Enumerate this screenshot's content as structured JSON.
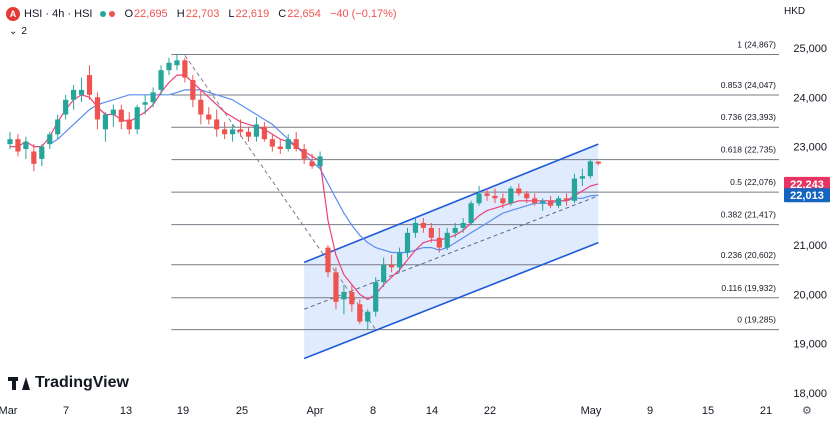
{
  "header": {
    "symbol": "HSI · 4h · HSI",
    "open_label": "O",
    "open": "22,695",
    "high_label": "H",
    "high": "22,703",
    "low_label": "L",
    "low": "22,619",
    "close_label": "C",
    "close": "22,654",
    "change": "−40 (−0.17%)",
    "collapse_label": "2",
    "currency": "HKD"
  },
  "brand": {
    "name": "TradingView"
  },
  "colors": {
    "up": "#26a69a",
    "down": "#ef5350",
    "ema_fast": "#ec407a",
    "ma_slow": "#5b8def",
    "channel_line": "#1e5bd8",
    "channel_fill": "#dbe7fd",
    "fib_line": "#787b86",
    "price_badge_red": "#e63563",
    "price_badge_blue": "#1565c0"
  },
  "chart_data": {
    "type": "candlestick",
    "timeframe": "4h",
    "ylim": [
      18000,
      25400
    ],
    "y_ticks": [
      "18,000",
      "19,000",
      "20,000",
      "21,000",
      "22,000",
      "23,000",
      "24,000",
      "25,000"
    ],
    "y_tick_values": [
      18000,
      19000,
      20000,
      21000,
      22000,
      23000,
      24000,
      25000
    ],
    "x_ticks": [
      "Mar",
      "7",
      "13",
      "19",
      "25",
      "Apr",
      "8",
      "14",
      "22",
      "May",
      "9",
      "15",
      "21"
    ],
    "fib_levels": [
      {
        "ratio": "1",
        "value": 24867,
        "label": "1 (24,867)"
      },
      {
        "ratio": "0.853",
        "value": 24047,
        "label": "0.853 (24,047)"
      },
      {
        "ratio": "0.736",
        "value": 23393,
        "label": "0.736 (23,393)"
      },
      {
        "ratio": "0.618",
        "value": 22735,
        "label": "0.618 (22,735)"
      },
      {
        "ratio": "0.5",
        "value": 22076,
        "label": "0.5 (22,076)"
      },
      {
        "ratio": "0.382",
        "value": 21417,
        "label": "0.382 (21,417)"
      },
      {
        "ratio": "0.236",
        "value": 20602,
        "label": "0.236 (20,602)"
      },
      {
        "ratio": "0.116",
        "value": 19932,
        "label": "0.116 (19,932)"
      },
      {
        "ratio": "0",
        "value": 19285,
        "label": "0 (19,285)"
      }
    ],
    "price_badges": [
      {
        "value": 22243,
        "label": "22,243",
        "color": "red"
      },
      {
        "value": 22013,
        "label": "22,013",
        "color": "blue"
      }
    ],
    "candles": [
      {
        "o": 23050,
        "h": 23300,
        "l": 22950,
        "c": 23150
      },
      {
        "o": 23150,
        "h": 23250,
        "l": 22800,
        "c": 22900
      },
      {
        "o": 22950,
        "h": 23200,
        "l": 22750,
        "c": 23100
      },
      {
        "o": 22900,
        "h": 23050,
        "l": 22500,
        "c": 22650
      },
      {
        "o": 22750,
        "h": 23050,
        "l": 22600,
        "c": 23000
      },
      {
        "o": 23050,
        "h": 23300,
        "l": 22950,
        "c": 23250
      },
      {
        "o": 23250,
        "h": 23650,
        "l": 23150,
        "c": 23550
      },
      {
        "o": 23650,
        "h": 24050,
        "l": 23550,
        "c": 23950
      },
      {
        "o": 23950,
        "h": 24250,
        "l": 23750,
        "c": 24150
      },
      {
        "o": 24050,
        "h": 24400,
        "l": 23900,
        "c": 24150
      },
      {
        "o": 24450,
        "h": 24650,
        "l": 23950,
        "c": 24050
      },
      {
        "o": 24000,
        "h": 24100,
        "l": 23350,
        "c": 23550
      },
      {
        "o": 23350,
        "h": 23700,
        "l": 23100,
        "c": 23650
      },
      {
        "o": 23650,
        "h": 23850,
        "l": 23400,
        "c": 23750
      },
      {
        "o": 23750,
        "h": 23850,
        "l": 23350,
        "c": 23500
      },
      {
        "o": 23550,
        "h": 23700,
        "l": 23250,
        "c": 23350
      },
      {
        "o": 23350,
        "h": 23850,
        "l": 23250,
        "c": 23800
      },
      {
        "o": 23850,
        "h": 24050,
        "l": 23650,
        "c": 23900
      },
      {
        "o": 23900,
        "h": 24200,
        "l": 23800,
        "c": 24100
      },
      {
        "o": 24150,
        "h": 24650,
        "l": 24050,
        "c": 24550
      },
      {
        "o": 24550,
        "h": 24800,
        "l": 24450,
        "c": 24700
      },
      {
        "o": 24650,
        "h": 24867,
        "l": 24550,
        "c": 24750
      },
      {
        "o": 24750,
        "h": 24800,
        "l": 24300,
        "c": 24400
      },
      {
        "o": 24350,
        "h": 24450,
        "l": 23800,
        "c": 23950
      },
      {
        "o": 23950,
        "h": 24150,
        "l": 23450,
        "c": 23650
      },
      {
        "o": 23650,
        "h": 23800,
        "l": 23450,
        "c": 23550
      },
      {
        "o": 23550,
        "h": 23750,
        "l": 23200,
        "c": 23350
      },
      {
        "o": 23350,
        "h": 23500,
        "l": 23150,
        "c": 23250
      },
      {
        "o": 23250,
        "h": 23450,
        "l": 23100,
        "c": 23350
      },
      {
        "o": 23350,
        "h": 23550,
        "l": 23200,
        "c": 23300
      },
      {
        "o": 23300,
        "h": 23400,
        "l": 23100,
        "c": 23200
      },
      {
        "o": 23200,
        "h": 23600,
        "l": 23100,
        "c": 23450
      },
      {
        "o": 23400,
        "h": 23500,
        "l": 23100,
        "c": 23150
      },
      {
        "o": 23150,
        "h": 23250,
        "l": 22900,
        "c": 23000
      },
      {
        "o": 23000,
        "h": 23150,
        "l": 22850,
        "c": 22950
      },
      {
        "o": 22950,
        "h": 23250,
        "l": 22900,
        "c": 23150
      },
      {
        "o": 23150,
        "h": 23300,
        "l": 22900,
        "c": 22950
      },
      {
        "o": 22950,
        "h": 23050,
        "l": 22650,
        "c": 22750
      },
      {
        "o": 22700,
        "h": 22850,
        "l": 22550,
        "c": 22600
      },
      {
        "o": 22600,
        "h": 22900,
        "l": 22550,
        "c": 22800
      },
      {
        "o": 20950,
        "h": 21000,
        "l": 20350,
        "c": 20450
      },
      {
        "o": 20450,
        "h": 20550,
        "l": 19700,
        "c": 19850
      },
      {
        "o": 19900,
        "h": 20200,
        "l": 19600,
        "c": 20050
      },
      {
        "o": 20050,
        "h": 20200,
        "l": 19650,
        "c": 19800
      },
      {
        "o": 19800,
        "h": 19900,
        "l": 19400,
        "c": 19450
      },
      {
        "o": 19450,
        "h": 19700,
        "l": 19285,
        "c": 19650
      },
      {
        "o": 19650,
        "h": 20350,
        "l": 19550,
        "c": 20250
      },
      {
        "o": 20250,
        "h": 20750,
        "l": 20150,
        "c": 20600
      },
      {
        "o": 20600,
        "h": 20800,
        "l": 20450,
        "c": 20550
      },
      {
        "o": 20550,
        "h": 20950,
        "l": 20450,
        "c": 20850
      },
      {
        "o": 20850,
        "h": 21350,
        "l": 20750,
        "c": 21250
      },
      {
        "o": 21250,
        "h": 21550,
        "l": 21150,
        "c": 21450
      },
      {
        "o": 21450,
        "h": 21550,
        "l": 21250,
        "c": 21350
      },
      {
        "o": 21350,
        "h": 21450,
        "l": 21050,
        "c": 21150
      },
      {
        "o": 21150,
        "h": 21350,
        "l": 20850,
        "c": 20950
      },
      {
        "o": 20950,
        "h": 21350,
        "l": 20900,
        "c": 21250
      },
      {
        "o": 21250,
        "h": 21450,
        "l": 21150,
        "c": 21350
      },
      {
        "o": 21350,
        "h": 21550,
        "l": 21250,
        "c": 21450
      },
      {
        "o": 21450,
        "h": 21900,
        "l": 21400,
        "c": 21850
      },
      {
        "o": 21850,
        "h": 22200,
        "l": 21800,
        "c": 22050
      },
      {
        "o": 22050,
        "h": 22150,
        "l": 21900,
        "c": 22000
      },
      {
        "o": 22000,
        "h": 22150,
        "l": 21850,
        "c": 21950
      },
      {
        "o": 21950,
        "h": 22050,
        "l": 21750,
        "c": 21850
      },
      {
        "o": 21850,
        "h": 22200,
        "l": 21800,
        "c": 22150
      },
      {
        "o": 22150,
        "h": 22250,
        "l": 22000,
        "c": 22050
      },
      {
        "o": 22050,
        "h": 22100,
        "l": 21850,
        "c": 21950
      },
      {
        "o": 21950,
        "h": 22050,
        "l": 21800,
        "c": 21850
      },
      {
        "o": 21850,
        "h": 21950,
        "l": 21700,
        "c": 21900
      },
      {
        "o": 21900,
        "h": 22000,
        "l": 21750,
        "c": 21800
      },
      {
        "o": 21800,
        "h": 22000,
        "l": 21750,
        "c": 21950
      },
      {
        "o": 21950,
        "h": 22050,
        "l": 21800,
        "c": 21900
      },
      {
        "o": 21900,
        "h": 22450,
        "l": 21850,
        "c": 22350
      },
      {
        "o": 22350,
        "h": 22550,
        "l": 22200,
        "c": 22400
      },
      {
        "o": 22400,
        "h": 22750,
        "l": 22350,
        "c": 22700
      },
      {
        "o": 22695,
        "h": 22703,
        "l": 22619,
        "c": 22654
      }
    ],
    "ema_fast": [
      23000,
      23000,
      23100,
      23000,
      23000,
      23200,
      23500,
      23750,
      23950,
      24050,
      24000,
      23800,
      23650,
      23650,
      23550,
      23500,
      23600,
      23700,
      23850,
      24100,
      24300,
      24450,
      24450,
      24300,
      24150,
      24000,
      23850,
      23700,
      23600,
      23500,
      23450,
      23400,
      23350,
      23250,
      23150,
      23100,
      23000,
      22900,
      22800,
      22700,
      21500,
      20800,
      20400,
      20200,
      20000,
      19900,
      20000,
      20200,
      20350,
      20500,
      20700,
      20900,
      21050,
      21100,
      21100,
      21150,
      21200,
      21300,
      21450,
      21600,
      21700,
      21750,
      21800,
      21850,
      21900,
      21900,
      21900,
      21900,
      21900,
      21900,
      21900,
      22000,
      22100,
      22200,
      22243
    ],
    "ma_slow": [
      null,
      null,
      null,
      null,
      null,
      23050,
      23150,
      23300,
      23450,
      23600,
      23750,
      23850,
      23900,
      23950,
      24000,
      24050,
      24050,
      24050,
      24050,
      24050,
      24050,
      24100,
      24150,
      24150,
      24150,
      24100,
      24050,
      24000,
      23950,
      23850,
      23750,
      23650,
      23550,
      23450,
      23300,
      23150,
      23000,
      22850,
      22700,
      22550,
      22250,
      21950,
      21650,
      21400,
      21200,
      21050,
      20950,
      20900,
      20850,
      20850,
      20850,
      20900,
      20950,
      20950,
      20900,
      20950,
      21050,
      21150,
      21250,
      21350,
      21450,
      21550,
      21650,
      21700,
      21750,
      21800,
      21850,
      21850,
      21850,
      21900,
      21900,
      21950,
      21950,
      22000,
      22013
    ],
    "channel": {
      "upper": [
        [
          37,
          20650
        ],
        [
          74,
          23050
        ]
      ],
      "lower": [
        [
          37,
          18700
        ],
        [
          74,
          21050
        ]
      ],
      "mid_dashed": [
        [
          37,
          19700
        ],
        [
          74,
          22000
        ]
      ]
    },
    "diagonal_dashed": [
      [
        22,
        24850
      ],
      [
        46,
        19285
      ]
    ]
  }
}
